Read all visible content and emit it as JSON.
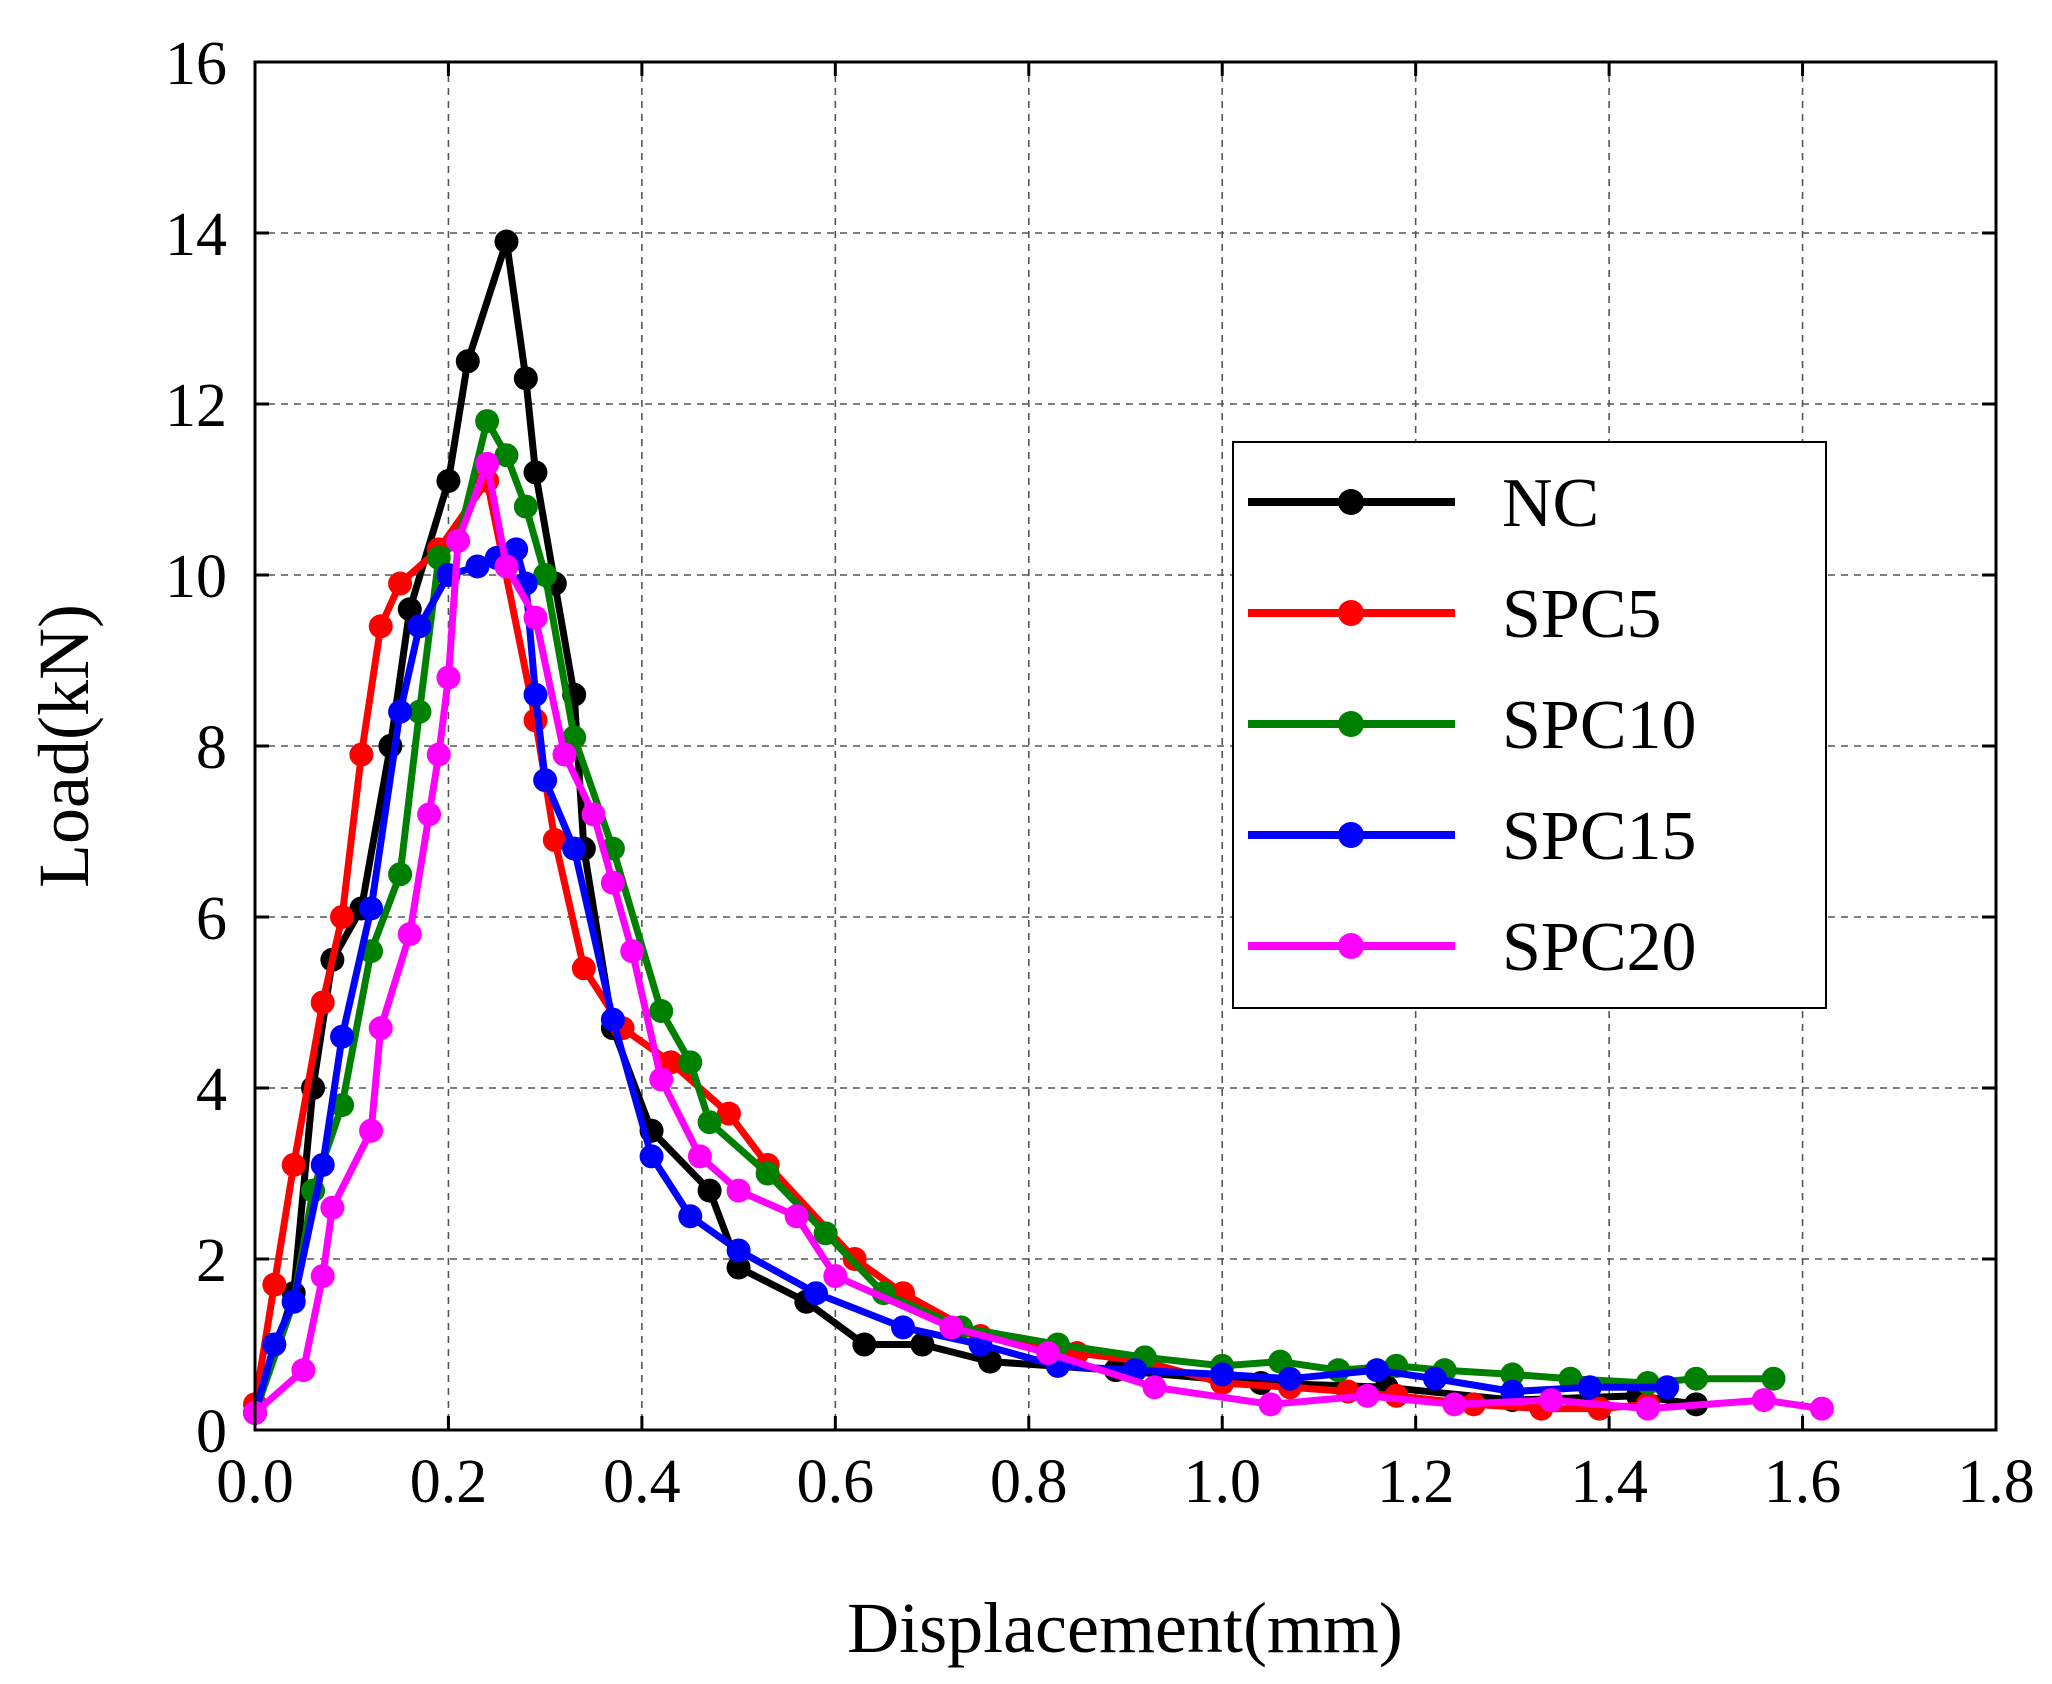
{
  "chart_data": {
    "type": "line",
    "title": "",
    "xlabel": "Displacement(mm)",
    "ylabel": "Load(kN)",
    "xlim": [
      0.0,
      1.8
    ],
    "ylim": [
      0,
      16
    ],
    "xticks": [
      "0.0",
      "0.2",
      "0.4",
      "0.6",
      "0.8",
      "1.0",
      "1.2",
      "1.4",
      "1.6",
      "1.8"
    ],
    "yticks": [
      "0",
      "2",
      "4",
      "6",
      "8",
      "10",
      "12",
      "14",
      "16"
    ],
    "grid": true,
    "legend_position": "center-right",
    "series": [
      {
        "name": "NC",
        "color": "#000000",
        "x": [
          0.0,
          0.04,
          0.06,
          0.08,
          0.11,
          0.14,
          0.16,
          0.2,
          0.22,
          0.26,
          0.28,
          0.29,
          0.31,
          0.33,
          0.34,
          0.37,
          0.41,
          0.47,
          0.5,
          0.57,
          0.63,
          0.69,
          0.76,
          0.89,
          1.04,
          1.17,
          1.3,
          1.43,
          1.49
        ],
        "y": [
          0.2,
          1.6,
          4.0,
          5.5,
          6.1,
          8.0,
          9.6,
          11.1,
          12.5,
          13.9,
          12.3,
          11.2,
          9.9,
          8.6,
          6.8,
          4.7,
          3.5,
          2.8,
          1.9,
          1.5,
          1.0,
          1.0,
          0.8,
          0.7,
          0.55,
          0.5,
          0.35,
          0.4,
          0.3
        ]
      },
      {
        "name": "SPC5",
        "color": "#ff0000",
        "x": [
          0.0,
          0.02,
          0.04,
          0.07,
          0.09,
          0.11,
          0.13,
          0.15,
          0.19,
          0.24,
          0.29,
          0.31,
          0.34,
          0.38,
          0.43,
          0.49,
          0.53,
          0.62,
          0.67,
          0.75,
          0.85,
          0.92,
          1.0,
          1.07,
          1.13,
          1.18,
          1.26,
          1.33,
          1.39,
          1.44
        ],
        "y": [
          0.3,
          1.7,
          3.1,
          5.0,
          6.0,
          7.9,
          9.4,
          9.9,
          10.3,
          11.1,
          8.3,
          6.9,
          5.4,
          4.7,
          4.3,
          3.7,
          3.1,
          2.0,
          1.6,
          1.1,
          0.9,
          0.8,
          0.55,
          0.5,
          0.45,
          0.4,
          0.3,
          0.25,
          0.25,
          0.3
        ]
      },
      {
        "name": "SPC10",
        "color": "#008000",
        "x": [
          0.0,
          0.04,
          0.06,
          0.09,
          0.12,
          0.15,
          0.17,
          0.19,
          0.21,
          0.24,
          0.26,
          0.28,
          0.3,
          0.33,
          0.37,
          0.42,
          0.45,
          0.47,
          0.53,
          0.59,
          0.65,
          0.73,
          0.83,
          0.92,
          1.0,
          1.06,
          1.12,
          1.18,
          1.23,
          1.3,
          1.36,
          1.44,
          1.49,
          1.57
        ],
        "y": [
          0.2,
          1.5,
          2.8,
          3.8,
          5.6,
          6.5,
          8.4,
          10.2,
          10.4,
          11.8,
          11.4,
          10.8,
          10.0,
          8.1,
          6.8,
          4.9,
          4.3,
          3.6,
          3.0,
          2.3,
          1.6,
          1.2,
          1.0,
          0.85,
          0.75,
          0.8,
          0.7,
          0.75,
          0.7,
          0.65,
          0.6,
          0.55,
          0.6,
          0.6
        ]
      },
      {
        "name": "SPC15",
        "color": "#0000ff",
        "x": [
          0.0,
          0.02,
          0.04,
          0.07,
          0.09,
          0.12,
          0.15,
          0.17,
          0.2,
          0.23,
          0.25,
          0.27,
          0.28,
          0.29,
          0.3,
          0.33,
          0.37,
          0.41,
          0.45,
          0.5,
          0.58,
          0.67,
          0.75,
          0.83,
          0.91,
          1.0,
          1.07,
          1.16,
          1.22,
          1.3,
          1.38,
          1.46
        ],
        "y": [
          0.2,
          1.0,
          1.5,
          3.1,
          4.6,
          6.1,
          8.4,
          9.4,
          10.0,
          10.1,
          10.2,
          10.3,
          9.9,
          8.6,
          7.6,
          6.8,
          4.8,
          3.2,
          2.5,
          2.1,
          1.6,
          1.2,
          1.0,
          0.75,
          0.7,
          0.65,
          0.6,
          0.7,
          0.6,
          0.45,
          0.5,
          0.5
        ]
      },
      {
        "name": "SPC20",
        "color": "#ff00ff",
        "x": [
          0.0,
          0.05,
          0.07,
          0.08,
          0.12,
          0.13,
          0.16,
          0.18,
          0.19,
          0.2,
          0.21,
          0.24,
          0.26,
          0.29,
          0.32,
          0.35,
          0.37,
          0.39,
          0.42,
          0.46,
          0.5,
          0.56,
          0.6,
          0.72,
          0.82,
          0.93,
          1.05,
          1.15,
          1.24,
          1.34,
          1.44,
          1.56,
          1.62
        ],
        "y": [
          0.2,
          0.7,
          1.8,
          2.6,
          3.5,
          4.7,
          5.8,
          7.2,
          7.9,
          8.8,
          10.4,
          11.3,
          10.1,
          9.5,
          7.9,
          7.2,
          6.4,
          5.6,
          4.1,
          3.2,
          2.8,
          2.5,
          1.8,
          1.2,
          0.9,
          0.5,
          0.3,
          0.4,
          0.3,
          0.35,
          0.25,
          0.35,
          0.25
        ]
      }
    ]
  }
}
